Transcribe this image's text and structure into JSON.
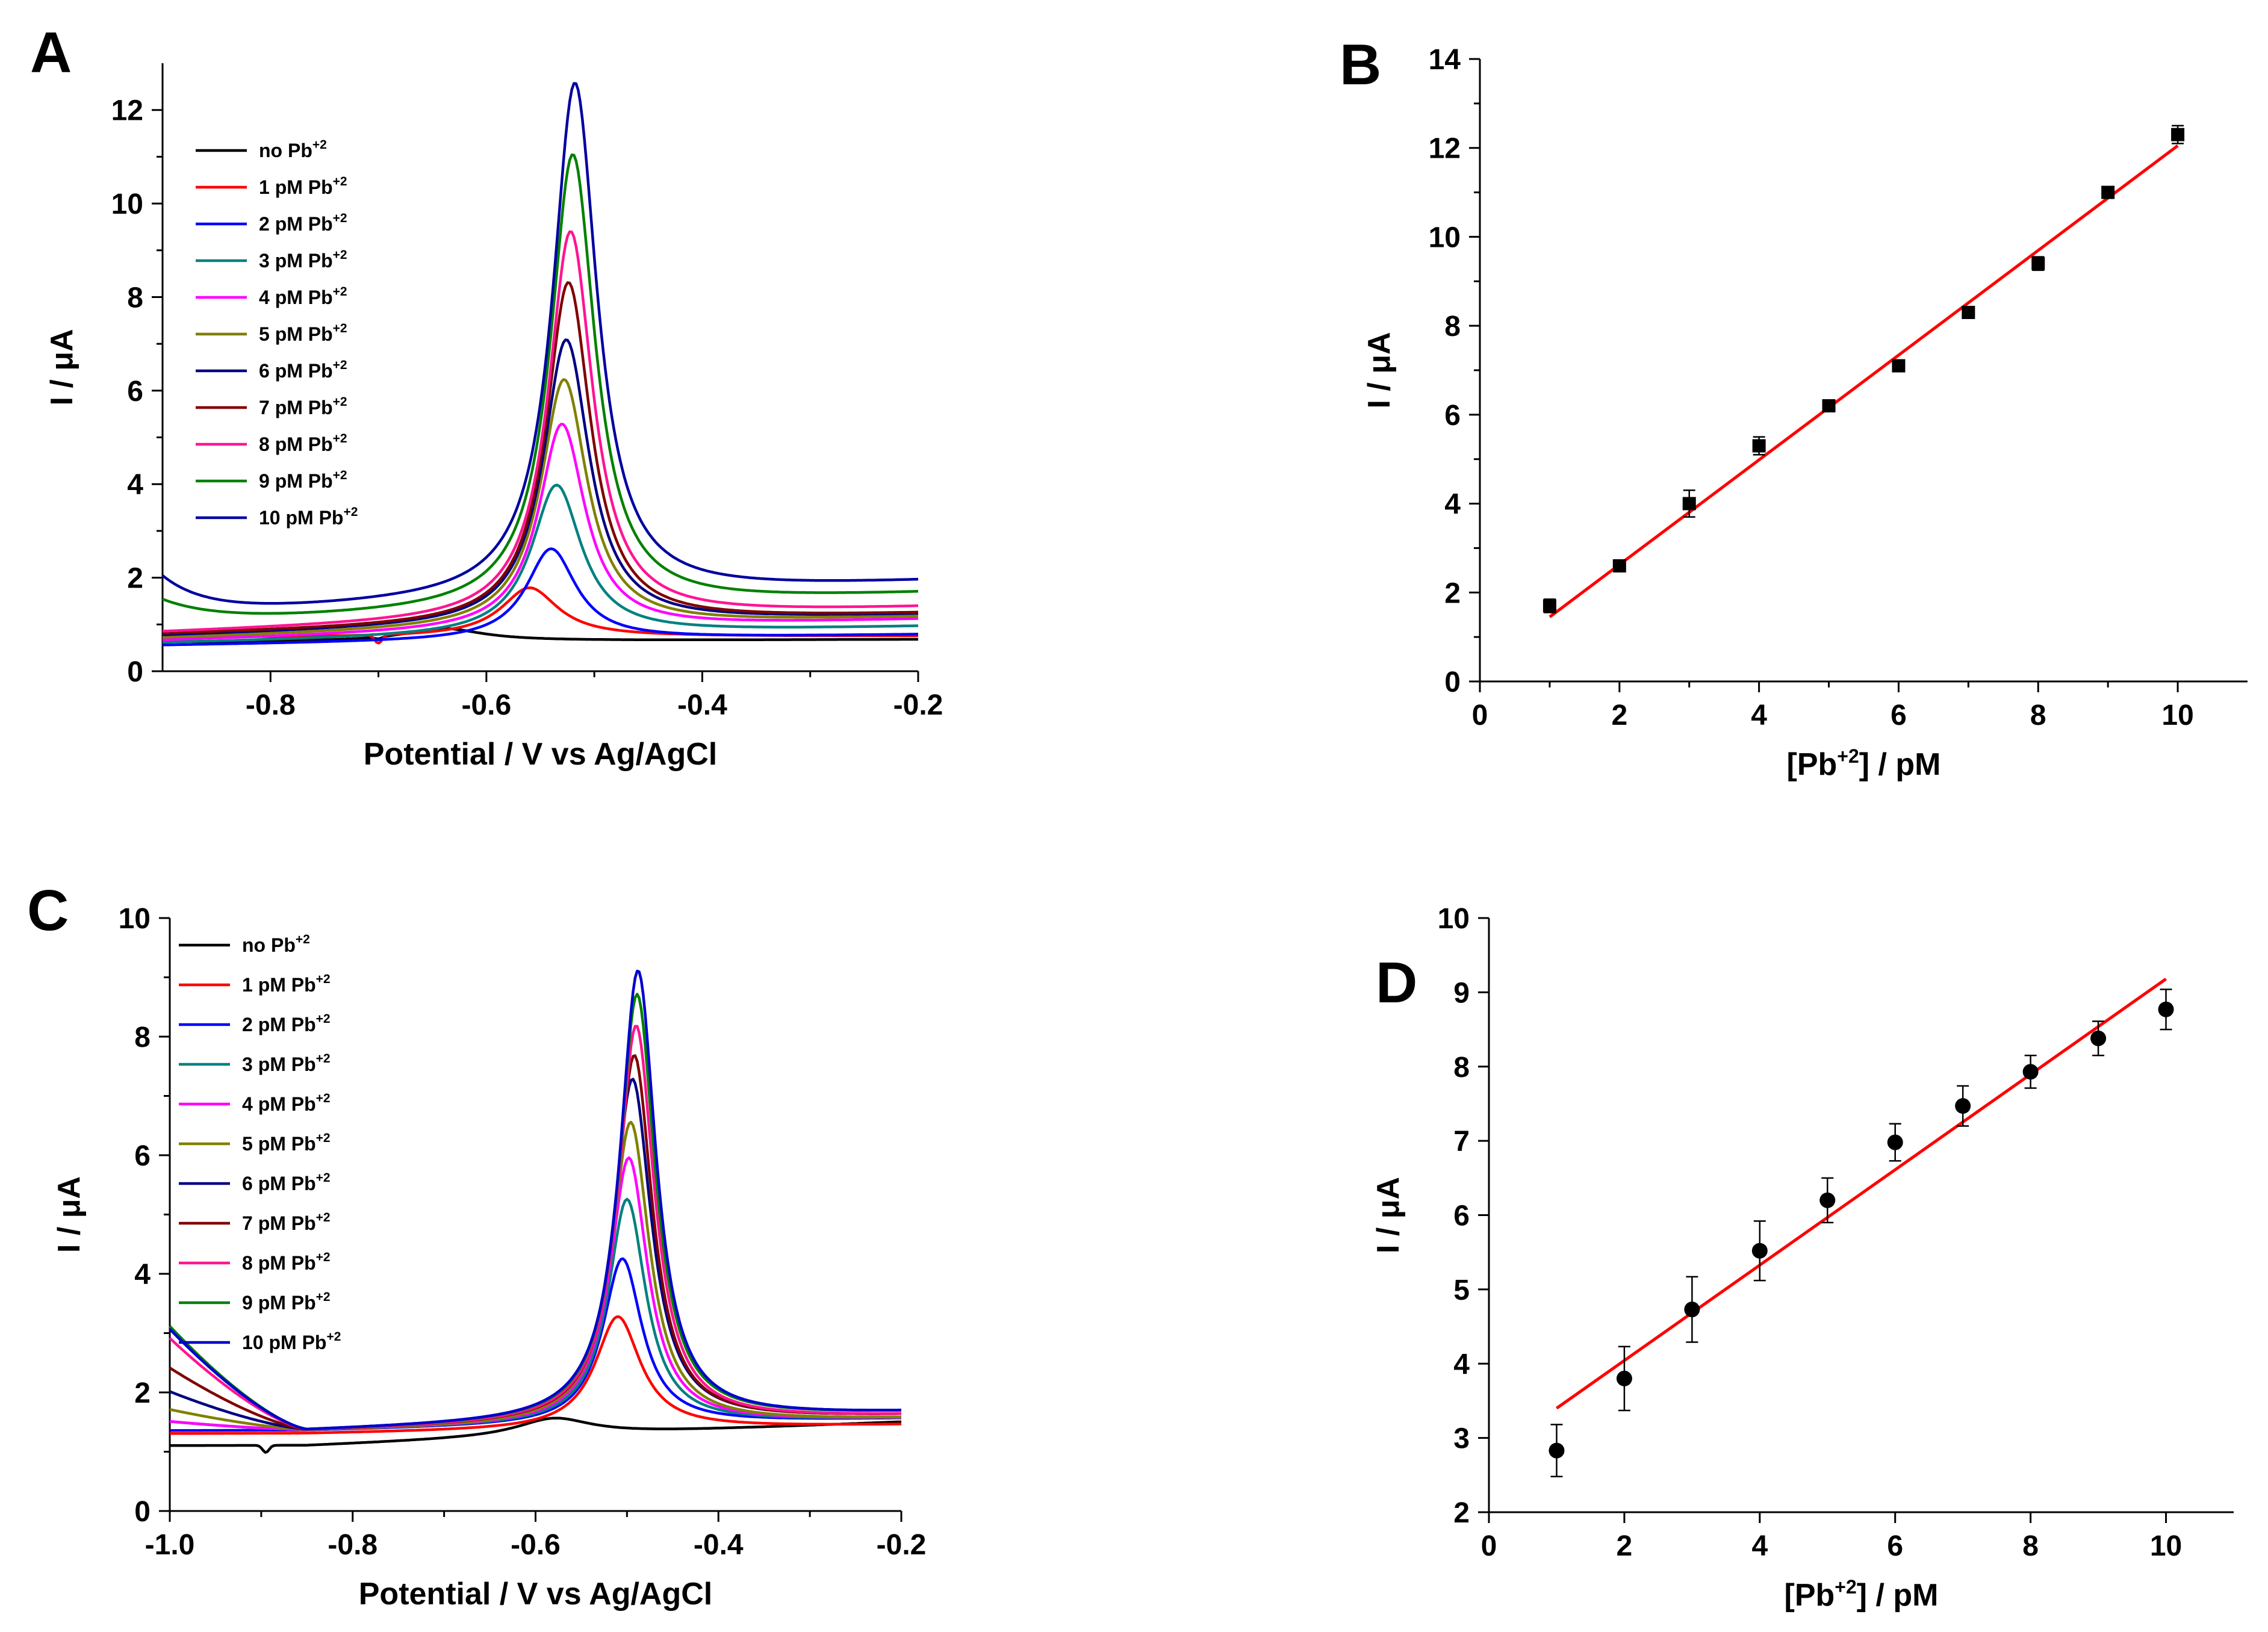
{
  "figure": {
    "panels": [
      {
        "letter": "A"
      },
      {
        "letter": "B"
      },
      {
        "letter": "C"
      },
      {
        "letter": "D"
      }
    ]
  },
  "chart_data": [
    {
      "id": "A",
      "type": "line",
      "xlabel": "Potential   /   V vs Ag/AgCl",
      "ylabel": "I   /   μA",
      "xlim": [
        -0.9,
        -0.2
      ],
      "ylim": [
        0,
        13
      ],
      "xticks": [
        -0.8,
        -0.6,
        -0.4,
        -0.2
      ],
      "yticks": [
        0,
        2,
        4,
        6,
        8,
        10,
        12
      ],
      "xtick_labels": [
        "-0.8",
        "-0.6",
        "-0.4",
        "-0.2"
      ],
      "ytick_labels": [
        "0",
        "2",
        "4",
        "6",
        "8",
        "10",
        "12"
      ],
      "legend_position": "top-left",
      "series": [
        {
          "name": "no Pb",
          "sup": "+2",
          "color": "#000000",
          "peak": 0.27,
          "center": -0.64,
          "width": 0.045,
          "base_left": 0.62,
          "base_right": 0.68,
          "bump_left": 0,
          "bump_width": 0.06,
          "dip": 0.04
        },
        {
          "name": "1 pM Pb",
          "sup": "+2",
          "color": "#ff0000",
          "peak": 1.05,
          "center": -0.56,
          "width": 0.032,
          "base_left": 0.72,
          "base_right": 0.75,
          "bump_left": 0,
          "bump_width": 0.06,
          "dip": 0.18
        },
        {
          "name": "2 pM Pb",
          "sup": "+2",
          "color": "#0000ff",
          "peak": 1.95,
          "center": -0.54,
          "width": 0.028,
          "base_left": 0.55,
          "base_right": 0.78,
          "bump_left": 0,
          "bump_width": 0.06,
          "dip": 0
        },
        {
          "name": "3 pM Pb",
          "sup": "+2",
          "color": "#008080",
          "peak": 3.2,
          "center": -0.535,
          "width": 0.028,
          "base_left": 0.6,
          "base_right": 0.95,
          "bump_left": 0,
          "bump_width": 0.06,
          "dip": 0
        },
        {
          "name": "4 pM Pb",
          "sup": "+2",
          "color": "#ff00ff",
          "peak": 4.4,
          "center": -0.53,
          "width": 0.026,
          "base_left": 0.65,
          "base_right": 1.1,
          "bump_left": 0,
          "bump_width": 0.06,
          "dip": 0
        },
        {
          "name": "5 pM Pb",
          "sup": "+2",
          "color": "#808000",
          "peak": 5.3,
          "center": -0.528,
          "width": 0.026,
          "base_left": 0.7,
          "base_right": 1.15,
          "bump_left": 0,
          "bump_width": 0.06,
          "dip": 0
        },
        {
          "name": "6 pM Pb",
          "sup": "+2",
          "color": "#000080",
          "peak": 6.1,
          "center": -0.526,
          "width": 0.026,
          "base_left": 0.75,
          "base_right": 1.2,
          "bump_left": 0,
          "bump_width": 0.06,
          "dip": 0
        },
        {
          "name": "7 pM Pb",
          "sup": "+2",
          "color": "#800000",
          "peak": 7.3,
          "center": -0.524,
          "width": 0.025,
          "base_left": 0.78,
          "base_right": 1.22,
          "bump_left": 0,
          "bump_width": 0.06,
          "dip": 0
        },
        {
          "name": "8 pM Pb",
          "sup": "+2",
          "color": "#ff1493",
          "peak": 8.3,
          "center": -0.522,
          "width": 0.025,
          "base_left": 0.82,
          "base_right": 1.35,
          "bump_left": 0,
          "bump_width": 0.06,
          "dip": 0
        },
        {
          "name": "9 pM Pb",
          "sup": "+2",
          "color": "#008000",
          "peak": 9.7,
          "center": -0.52,
          "width": 0.025,
          "base_left": 1.0,
          "base_right": 1.65,
          "bump_left": 0.5,
          "bump_width": 0.05,
          "dip": 0
        },
        {
          "name": "10 pM Pb",
          "sup": "+2",
          "color": "#0000a0",
          "peak": 11.0,
          "center": -0.518,
          "width": 0.025,
          "base_left": 1.2,
          "base_right": 1.9,
          "bump_left": 0.8,
          "bump_width": 0.04,
          "dip": 0
        }
      ]
    },
    {
      "id": "B",
      "type": "scatter",
      "marker": "square",
      "xlabel": "[Pb",
      "xlabel_sup": "+2",
      "xlabel_tail": "]   /   pM",
      "ylabel": "I   /   μA",
      "xlim": [
        0,
        11
      ],
      "ylim": [
        0,
        14
      ],
      "xticks": [
        0,
        2,
        4,
        6,
        8,
        10
      ],
      "yticks": [
        0,
        2,
        4,
        6,
        8,
        10,
        12,
        14
      ],
      "xtick_labels": [
        "0",
        "2",
        "4",
        "6",
        "8",
        "10"
      ],
      "ytick_labels": [
        "0",
        "2",
        "4",
        "6",
        "8",
        "10",
        "12",
        "14"
      ],
      "points": [
        {
          "x": 1,
          "y": 1.7,
          "err": 0.15
        },
        {
          "x": 2,
          "y": 2.6,
          "err": 0.1
        },
        {
          "x": 3,
          "y": 4.0,
          "err": 0.3
        },
        {
          "x": 4,
          "y": 5.3,
          "err": 0.2
        },
        {
          "x": 5,
          "y": 6.2,
          "err": 0.1
        },
        {
          "x": 6,
          "y": 7.1,
          "err": 0.1
        },
        {
          "x": 7,
          "y": 8.3,
          "err": 0.1
        },
        {
          "x": 8,
          "y": 9.4,
          "err": 0.15
        },
        {
          "x": 9,
          "y": 11.0,
          "err": 0.1
        },
        {
          "x": 10,
          "y": 12.3,
          "err": 0.2
        }
      ],
      "fit": {
        "x": [
          1,
          10
        ],
        "y": [
          1.45,
          12.05
        ],
        "color": "#ff0000"
      }
    },
    {
      "id": "C",
      "type": "line",
      "xlabel": "Potential   /   V vs Ag/AgCl",
      "ylabel": "I   /   μA",
      "xlim": [
        -1.0,
        -0.2
      ],
      "ylim": [
        0,
        10
      ],
      "xticks": [
        -1.0,
        -0.8,
        -0.6,
        -0.4,
        -0.2
      ],
      "yticks": [
        0,
        2,
        4,
        6,
        8,
        10
      ],
      "xtick_labels": [
        "-1.0",
        "-0.8",
        "-0.6",
        "-0.4",
        "-0.2"
      ],
      "ytick_labels": [
        "0",
        "2",
        "4",
        "6",
        "8",
        "10"
      ],
      "legend_position": "top-left",
      "series": [
        {
          "name": "no Pb",
          "sup": "+2",
          "color": "#000000",
          "peak": 0.3,
          "center": -0.58,
          "width": 0.05,
          "base_left": 1.1,
          "base_right": 1.5,
          "start_left": 1.1,
          "dip": 0.12
        },
        {
          "name": "1 pM Pb",
          "sup": "+2",
          "color": "#ff0000",
          "peak": 1.9,
          "center": -0.51,
          "width": 0.03,
          "base_left": 1.3,
          "base_right": 1.45,
          "start_left": 1.3,
          "dip": 0
        },
        {
          "name": "2 pM Pb",
          "sup": "+2",
          "color": "#0000ff",
          "peak": 2.8,
          "center": -0.505,
          "width": 0.026,
          "base_left": 1.35,
          "base_right": 1.55,
          "start_left": 1.35,
          "dip": 0
        },
        {
          "name": "3 pM Pb",
          "sup": "+2",
          "color": "#008080",
          "peak": 3.8,
          "center": -0.5,
          "width": 0.025,
          "base_left": 1.35,
          "base_right": 1.55,
          "start_left": 1.5,
          "dip": 0
        },
        {
          "name": "4 pM Pb",
          "sup": "+2",
          "color": "#ff00ff",
          "peak": 4.5,
          "center": -0.498,
          "width": 0.025,
          "base_left": 1.35,
          "base_right": 1.55,
          "start_left": 1.5,
          "dip": 0
        },
        {
          "name": "5 pM Pb",
          "sup": "+2",
          "color": "#808000",
          "peak": 5.1,
          "center": -0.496,
          "width": 0.025,
          "base_left": 1.35,
          "base_right": 1.55,
          "start_left": 1.7,
          "dip": 0
        },
        {
          "name": "6 pM Pb",
          "sup": "+2",
          "color": "#000080",
          "peak": 5.8,
          "center": -0.494,
          "width": 0.025,
          "base_left": 1.35,
          "base_right": 1.6,
          "start_left": 2.0,
          "dip": 0
        },
        {
          "name": "7 pM Pb",
          "sup": "+2",
          "color": "#800000",
          "peak": 6.2,
          "center": -0.492,
          "width": 0.024,
          "base_left": 1.35,
          "base_right": 1.6,
          "start_left": 2.4,
          "dip": 0
        },
        {
          "name": "8 pM Pb",
          "sup": "+2",
          "color": "#ff1493",
          "peak": 6.7,
          "center": -0.49,
          "width": 0.024,
          "base_left": 1.35,
          "base_right": 1.6,
          "start_left": 2.9,
          "dip": 0
        },
        {
          "name": "9 pM Pb",
          "sup": "+2",
          "color": "#008000",
          "peak": 7.2,
          "center": -0.489,
          "width": 0.024,
          "base_left": 1.35,
          "base_right": 1.65,
          "start_left": 3.1,
          "dip": 0
        },
        {
          "name": "10 pM Pb",
          "sup": "+2",
          "color": "#0000cd",
          "peak": 7.6,
          "center": -0.488,
          "width": 0.024,
          "base_left": 1.35,
          "base_right": 1.65,
          "start_left": 3.05,
          "dip": 0
        }
      ]
    },
    {
      "id": "D",
      "type": "scatter",
      "marker": "circle",
      "xlabel": "[Pb",
      "xlabel_sup": "+2",
      "xlabel_tail": "]   /   pM",
      "ylabel": "I   /   μA",
      "xlim": [
        0,
        11
      ],
      "ylim": [
        2,
        10
      ],
      "xticks": [
        0,
        2,
        4,
        6,
        8,
        10
      ],
      "yticks": [
        2,
        3,
        4,
        5,
        6,
        7,
        8,
        9,
        10
      ],
      "xtick_labels": [
        "0",
        "2",
        "4",
        "6",
        "8",
        "10"
      ],
      "ytick_labels": [
        "2",
        "3",
        "4",
        "5",
        "6",
        "7",
        "8",
        "9",
        "10"
      ],
      "points": [
        {
          "x": 1,
          "y": 2.83,
          "err": 0.35
        },
        {
          "x": 2,
          "y": 3.8,
          "err": 0.43
        },
        {
          "x": 3,
          "y": 4.73,
          "err": 0.44
        },
        {
          "x": 4,
          "y": 5.52,
          "err": 0.4
        },
        {
          "x": 5,
          "y": 6.2,
          "err": 0.3
        },
        {
          "x": 6,
          "y": 6.98,
          "err": 0.25
        },
        {
          "x": 7,
          "y": 7.47,
          "err": 0.27
        },
        {
          "x": 8,
          "y": 7.93,
          "err": 0.22
        },
        {
          "x": 9,
          "y": 8.38,
          "err": 0.23
        },
        {
          "x": 10,
          "y": 8.77,
          "err": 0.27
        }
      ],
      "fit": {
        "x": [
          1,
          10
        ],
        "y": [
          3.4,
          9.18
        ],
        "color": "#ff0000"
      }
    }
  ]
}
